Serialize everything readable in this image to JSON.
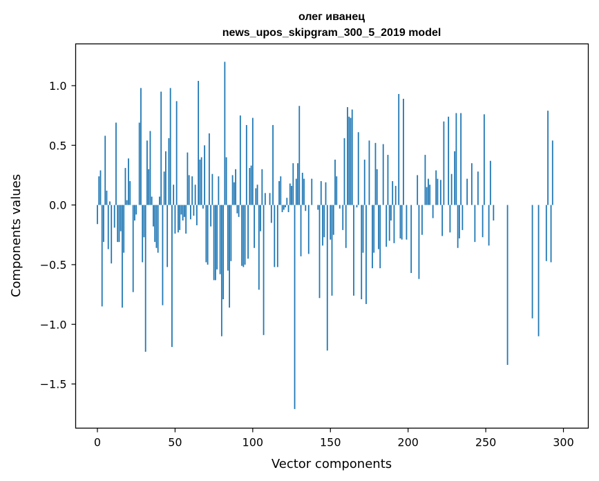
{
  "chart_data": {
    "type": "bar",
    "title": "олег иванец",
    "subtitle": "news_upos_skipgram_300_5_2019 model",
    "xlabel": "Vector components",
    "ylabel": "Components values",
    "xlim": [
      -14,
      316
    ],
    "ylim": [
      -1.87,
      1.35
    ],
    "xticks": [
      0,
      50,
      100,
      150,
      200,
      250,
      300
    ],
    "xtick_labels": [
      "0",
      "50",
      "100",
      "150",
      "200",
      "250",
      "300"
    ],
    "yticks": [
      -1.5,
      -1.0,
      -0.5,
      0.0,
      0.5,
      1.0
    ],
    "ytick_labels": [
      "−1.5",
      "−1.0",
      "−0.5",
      "0.0",
      "0.5",
      "1.0"
    ],
    "grid": false,
    "legend": "none",
    "bar_color": "#1f77b4",
    "values": [
      -0.16,
      0.24,
      0.29,
      -0.85,
      -0.31,
      0.58,
      0.12,
      -0.37,
      0.03,
      -0.49,
      0.0,
      -0.19,
      0.69,
      -0.31,
      -0.31,
      -0.22,
      -0.86,
      -0.4,
      0.31,
      0.04,
      0.39,
      0.2,
      0.0,
      -0.73,
      -0.13,
      -0.08,
      0.0,
      0.69,
      0.98,
      -0.48,
      -0.27,
      -1.23,
      0.54,
      0.3,
      0.62,
      0.07,
      -0.18,
      -0.31,
      -0.36,
      -0.4,
      0.07,
      0.95,
      -0.84,
      0.28,
      0.45,
      -0.52,
      0.56,
      0.98,
      -1.19,
      0.17,
      -0.24,
      0.87,
      -0.23,
      -0.21,
      -0.08,
      -0.13,
      -0.1,
      -0.24,
      0.44,
      0.25,
      -0.12,
      0.24,
      -0.09,
      0.17,
      -0.17,
      1.04,
      0.38,
      0.4,
      -0.03,
      0.5,
      -0.48,
      -0.5,
      0.6,
      -0.18,
      0.26,
      -0.63,
      -0.63,
      -0.54,
      0.24,
      -0.58,
      -1.1,
      -0.79,
      1.2,
      0.4,
      -0.55,
      -0.86,
      -0.47,
      0.25,
      0.19,
      0.3,
      -0.07,
      -0.1,
      0.75,
      -0.51,
      -0.52,
      -0.5,
      0.67,
      -0.45,
      0.31,
      0.33,
      0.73,
      -0.36,
      0.14,
      0.17,
      -0.71,
      -0.22,
      0.3,
      -1.09,
      0.1,
      0.0,
      0.0,
      0.1,
      -0.15,
      0.67,
      -0.52,
      0.0,
      -0.52,
      0.2,
      0.24,
      -0.06,
      -0.04,
      -0.02,
      0.06,
      -0.06,
      0.18,
      0.16,
      0.35,
      -1.71,
      0.22,
      0.35,
      0.83,
      -0.43,
      0.27,
      0.22,
      -0.05,
      0.0,
      -0.41,
      0.0,
      0.22,
      0.0,
      0.0,
      0.0,
      -0.04,
      -0.78,
      0.2,
      -0.34,
      -0.27,
      0.19,
      -1.22,
      0.0,
      -0.29,
      -0.76,
      -0.25,
      0.38,
      0.24,
      0.0,
      -0.03,
      0.0,
      -0.21,
      0.56,
      -0.36,
      0.82,
      0.74,
      0.73,
      0.8,
      -0.76,
      0.0,
      -0.02,
      0.61,
      0.0,
      -0.79,
      -0.4,
      0.38,
      -0.83,
      0.0,
      0.54,
      0.0,
      -0.53,
      -0.4,
      0.52,
      0.3,
      -0.37,
      -0.53,
      0.0,
      0.51,
      0.0,
      -0.35,
      0.42,
      -0.3,
      -0.13,
      0.2,
      -0.32,
      0.16,
      0.0,
      0.93,
      -0.28,
      -0.29,
      0.89,
      0.0,
      -0.29,
      0.0,
      0.0,
      -0.57,
      0.0,
      0.0,
      0.0,
      0.25,
      -0.62,
      0.0,
      -0.25,
      0.0,
      0.42,
      0.15,
      0.22,
      0.17,
      0.0,
      -0.11,
      0.0,
      0.29,
      0.22,
      0.0,
      0.21,
      -0.26,
      0.7,
      0.0,
      0.0,
      0.74,
      -0.23,
      0.26,
      0.0,
      0.45,
      0.77,
      -0.36,
      -0.28,
      0.77,
      -0.21,
      0.0,
      0.0,
      0.22,
      0.0,
      0.0,
      0.35,
      0.0,
      -0.31,
      0.0,
      0.28,
      0.0,
      0.0,
      -0.27,
      0.76,
      0.0,
      0.0,
      -0.34,
      0.37,
      0.0,
      -0.13,
      0.0,
      0.0,
      0.0,
      0.0,
      0.0,
      0.0,
      0.0,
      0.0,
      -1.34,
      0.0,
      0.0,
      0.0,
      0.0,
      0.0,
      0.0,
      0.0,
      0.0,
      0.0,
      0.0,
      0.0,
      0.0,
      0.0,
      0.0,
      0.0,
      -0.95,
      0.0,
      0.0,
      0.0,
      -1.1,
      0.0,
      0.0,
      0.0,
      0.0,
      -0.47,
      0.79,
      0.0,
      -0.48,
      0.54
    ]
  }
}
